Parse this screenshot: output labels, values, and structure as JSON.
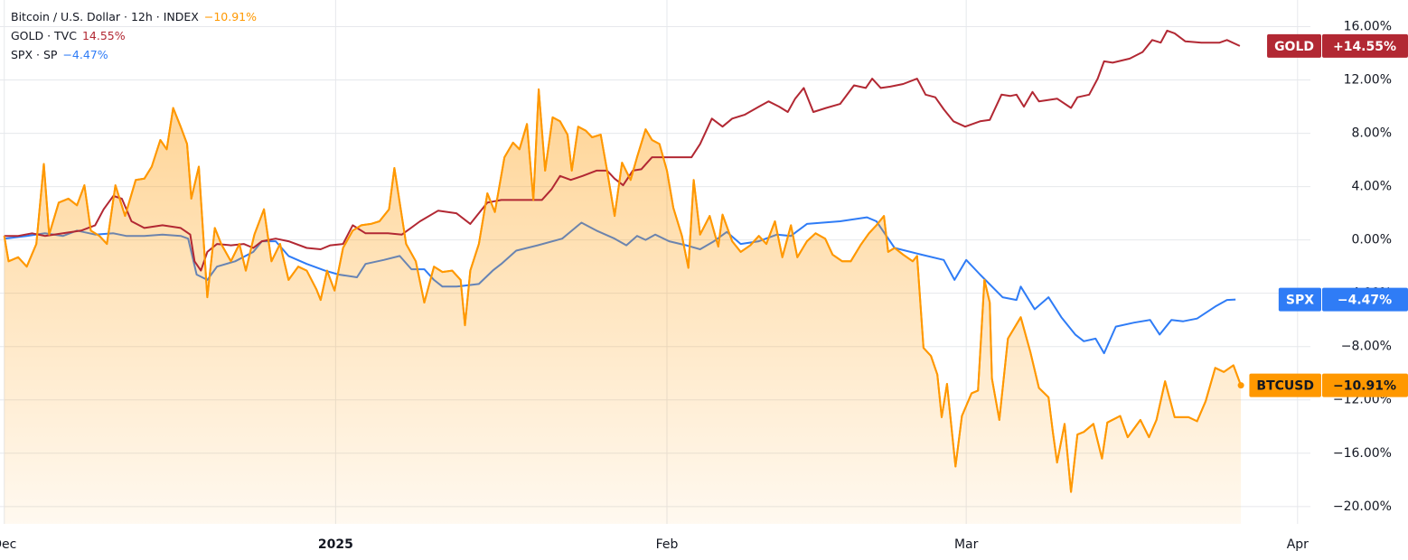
{
  "chart_data": {
    "type": "line",
    "xlim": [
      -0.4,
      122.2
    ],
    "xticks": [
      {
        "value": 0,
        "label": "Dec"
      },
      {
        "value": 31,
        "label": "2025"
      },
      {
        "value": 62,
        "label": "Feb"
      },
      {
        "value": 90,
        "label": "Mar"
      },
      {
        "value": 121,
        "label": "Apr"
      }
    ],
    "ylim": [
      -21.3,
      18.0
    ],
    "yticks": [
      {
        "value": 16,
        "label": "16.00%"
      },
      {
        "value": 12,
        "label": "12.00%"
      },
      {
        "value": 8,
        "label": "8.00%"
      },
      {
        "value": 4,
        "label": "4.00%"
      },
      {
        "value": 0,
        "label": "0.00%"
      },
      {
        "value": -4,
        "label": "−4.00%"
      },
      {
        "value": -8,
        "label": "−8.00%"
      },
      {
        "value": -12,
        "label": "−12.00%"
      },
      {
        "value": -16,
        "label": "−16.00%"
      },
      {
        "value": -20,
        "label": "−20.00%"
      }
    ],
    "grid": true,
    "series": [
      {
        "name": "SPX",
        "legend_label": "SPX · SP",
        "legend_value": "−4.47%",
        "last_label": "−4.47%",
        "color": "#2f7cf6",
        "area": false,
        "x": [
          0.0,
          2.1,
          3.8,
          5.5,
          6.8,
          8.5,
          10.2,
          11.4,
          13.1,
          14.8,
          16.5,
          17.2,
          18.0,
          19.0,
          19.9,
          21.6,
          23.3,
          24.1,
          25.4,
          26.6,
          28.3,
          30.0,
          31.3,
          33.0,
          33.8,
          35.5,
          37.0,
          38.1,
          39.3,
          40.2,
          41.0,
          42.3,
          44.4,
          45.7,
          46.5,
          47.9,
          49.9,
          52.2,
          54.0,
          55.4,
          57.1,
          58.2,
          59.2,
          60.0,
          60.9,
          62.2,
          63.8,
          65.1,
          66.4,
          67.6,
          68.9,
          70.6,
          72.3,
          73.6,
          75.1,
          78.2,
          80.7,
          81.6,
          83.3,
          85.8,
          87.9,
          88.9,
          90.0,
          91.3,
          93.4,
          94.7,
          95.1,
          96.4,
          97.7,
          98.9,
          100.2,
          101.0,
          102.1,
          102.9,
          104.0,
          105.7,
          107.2,
          108.1,
          109.2,
          110.3,
          111.6,
          113.3,
          114.4,
          115.2
        ],
        "values": [
          0.1,
          0.3,
          0.5,
          0.3,
          0.7,
          0.4,
          0.5,
          0.3,
          0.3,
          0.4,
          0.3,
          0.1,
          -2.6,
          -3.0,
          -2.0,
          -1.6,
          -0.9,
          -0.1,
          -0.1,
          -1.2,
          -1.8,
          -2.3,
          -2.6,
          -2.8,
          -1.8,
          -1.5,
          -1.2,
          -2.2,
          -2.2,
          -3.0,
          -3.5,
          -3.5,
          -3.3,
          -2.3,
          -1.8,
          -0.8,
          -0.4,
          0.1,
          1.3,
          0.7,
          0.1,
          -0.4,
          0.3,
          0.0,
          0.4,
          -0.1,
          -0.4,
          -0.7,
          -0.1,
          0.6,
          -0.3,
          -0.1,
          0.4,
          0.3,
          1.2,
          1.4,
          1.7,
          1.4,
          -0.6,
          -1.1,
          -1.5,
          -3.0,
          -1.5,
          -2.6,
          -4.3,
          -4.5,
          -3.5,
          -5.2,
          -4.3,
          -5.8,
          -7.1,
          -7.6,
          -7.4,
          -8.5,
          -6.5,
          -6.2,
          -6.0,
          -7.1,
          -6.0,
          -6.1,
          -5.9,
          -5.0,
          -4.5,
          -4.47
        ]
      },
      {
        "name": "BTCUSD",
        "legend_label": "Bitcoin / U.S. Dollar · 12h · INDEX",
        "legend_value": "−10.91%",
        "last_label": "−10.91%",
        "color": "#ff9800",
        "area": true,
        "x": [
          0.0,
          0.4,
          1.3,
          2.1,
          3.0,
          3.7,
          4.2,
          5.1,
          6.0,
          6.8,
          7.5,
          8.1,
          8.9,
          9.6,
          10.4,
          11.3,
          12.3,
          13.1,
          13.8,
          14.6,
          15.2,
          15.8,
          16.5,
          17.1,
          17.5,
          18.2,
          19.0,
          19.7,
          20.3,
          21.2,
          22.0,
          22.6,
          23.4,
          24.3,
          25.0,
          25.8,
          26.6,
          27.5,
          28.3,
          29.2,
          29.6,
          30.2,
          30.9,
          31.7,
          32.6,
          33.4,
          34.3,
          35.1,
          36.0,
          36.5,
          37.0,
          37.6,
          38.5,
          39.3,
          40.2,
          41.0,
          41.9,
          42.7,
          43.1,
          43.6,
          44.4,
          45.2,
          45.9,
          46.8,
          47.6,
          48.2,
          48.9,
          49.5,
          50.0,
          50.6,
          51.3,
          52.0,
          52.7,
          53.1,
          53.7,
          54.4,
          55.0,
          55.8,
          56.4,
          57.1,
          57.8,
          58.6,
          59.2,
          60.0,
          60.6,
          61.3,
          62.0,
          62.6,
          63.4,
          64.0,
          64.5,
          65.1,
          66.0,
          66.8,
          67.2,
          68.1,
          68.9,
          69.8,
          70.6,
          71.3,
          72.1,
          72.8,
          73.6,
          74.2,
          75.1,
          75.9,
          76.8,
          77.5,
          78.4,
          79.2,
          80.1,
          80.9,
          81.6,
          82.3,
          82.7,
          83.3,
          84.1,
          85.0,
          85.4,
          86.0,
          86.7,
          87.3,
          87.7,
          88.2,
          89.0,
          89.6,
          90.5,
          91.1,
          91.7,
          92.2,
          92.4,
          93.1,
          93.9,
          95.1,
          96.0,
          96.8,
          97.7,
          98.1,
          98.5,
          99.2,
          99.8,
          100.4,
          101.0,
          101.9,
          102.7,
          103.2,
          104.4,
          105.1,
          106.3,
          107.1,
          107.8,
          108.6,
          109.5,
          110.8,
          111.6,
          112.4,
          113.3,
          114.1,
          115.0,
          115.7
        ],
        "values": [
          0.3,
          -1.6,
          -1.3,
          -2.0,
          -0.3,
          5.7,
          0.4,
          2.8,
          3.1,
          2.6,
          4.1,
          0.7,
          0.3,
          -0.3,
          4.1,
          1.8,
          4.5,
          4.6,
          5.5,
          7.5,
          6.8,
          9.9,
          8.5,
          7.2,
          3.1,
          5.5,
          -4.3,
          0.9,
          -0.3,
          -1.6,
          -0.3,
          -2.3,
          0.4,
          2.3,
          -1.6,
          -0.3,
          -3.0,
          -2.0,
          -2.3,
          -3.7,
          -4.5,
          -2.3,
          -3.8,
          -0.6,
          0.7,
          1.1,
          1.2,
          1.4,
          2.3,
          5.4,
          2.8,
          -0.3,
          -1.6,
          -4.7,
          -2.0,
          -2.4,
          -2.3,
          -3.0,
          -6.4,
          -2.3,
          -0.3,
          3.5,
          2.1,
          6.2,
          7.3,
          6.8,
          8.7,
          3.0,
          11.3,
          5.2,
          9.2,
          8.9,
          7.9,
          5.2,
          8.5,
          8.2,
          7.7,
          7.9,
          5.2,
          1.8,
          5.8,
          4.5,
          6.2,
          8.3,
          7.5,
          7.2,
          5.2,
          2.4,
          0.3,
          -2.1,
          4.5,
          0.4,
          1.8,
          -0.5,
          1.9,
          -0.1,
          -0.9,
          -0.4,
          0.3,
          -0.3,
          1.4,
          -1.3,
          1.1,
          -1.3,
          -0.1,
          0.5,
          0.1,
          -1.1,
          -1.6,
          -1.6,
          -0.4,
          0.5,
          1.1,
          1.8,
          -0.9,
          -0.6,
          -1.1,
          -1.6,
          -1.2,
          -8.1,
          -8.7,
          -10.1,
          -13.3,
          -10.8,
          -17.0,
          -13.2,
          -11.5,
          -11.3,
          -3.0,
          -4.7,
          -10.4,
          -13.5,
          -7.4,
          -5.8,
          -8.4,
          -11.1,
          -11.8,
          -14.4,
          -16.7,
          -13.8,
          -18.9,
          -14.6,
          -14.4,
          -13.8,
          -16.4,
          -13.7,
          -13.2,
          -14.8,
          -13.5,
          -14.8,
          -13.5,
          -10.6,
          -13.3,
          -13.3,
          -13.6,
          -12.1,
          -9.6,
          -9.9,
          -9.4,
          -10.91
        ]
      },
      {
        "name": "GOLD",
        "legend_label": "GOLD · TVC",
        "legend_value": "14.55%",
        "last_label": "+14.55%",
        "color": "#b22833",
        "area": false,
        "x": [
          0.0,
          1.3,
          2.6,
          3.8,
          5.5,
          7.2,
          8.5,
          9.3,
          10.2,
          11.0,
          11.9,
          13.1,
          14.8,
          16.5,
          17.4,
          17.8,
          18.4,
          19.0,
          19.9,
          21.2,
          22.4,
          23.3,
          24.1,
          25.4,
          26.6,
          28.3,
          29.6,
          30.5,
          31.7,
          32.6,
          33.8,
          35.9,
          37.2,
          38.9,
          40.6,
          42.3,
          43.6,
          45.2,
          46.5,
          48.6,
          50.3,
          51.2,
          52.0,
          53.0,
          54.1,
          55.4,
          56.4,
          57.1,
          57.9,
          58.8,
          59.6,
          60.6,
          61.7,
          64.3,
          65.1,
          66.2,
          67.2,
          68.1,
          69.3,
          70.6,
          71.5,
          72.5,
          73.3,
          74.0,
          74.8,
          75.7,
          76.9,
          78.2,
          79.5,
          80.6,
          81.2,
          82.0,
          82.9,
          84.1,
          85.4,
          86.2,
          87.1,
          87.9,
          88.8,
          89.9,
          91.3,
          92.2,
          93.3,
          94.1,
          94.7,
          95.4,
          96.2,
          96.8,
          98.5,
          99.8,
          100.4,
          101.5,
          102.3,
          102.9,
          103.7,
          105.3,
          106.5,
          107.4,
          108.2,
          108.8,
          109.5,
          110.5,
          112.0,
          113.7,
          114.4,
          115.6
        ],
        "values": [
          0.3,
          0.3,
          0.5,
          0.3,
          0.5,
          0.7,
          1.1,
          2.3,
          3.3,
          3.1,
          1.4,
          0.9,
          1.1,
          0.9,
          0.4,
          -1.6,
          -2.3,
          -0.9,
          -0.3,
          -0.4,
          -0.3,
          -0.6,
          -0.1,
          0.1,
          -0.1,
          -0.6,
          -0.7,
          -0.4,
          -0.3,
          1.1,
          0.5,
          0.5,
          0.4,
          1.4,
          2.2,
          2.0,
          1.2,
          2.8,
          3.0,
          3.0,
          3.0,
          3.8,
          4.8,
          4.5,
          4.8,
          5.2,
          5.2,
          4.6,
          4.1,
          5.2,
          5.3,
          6.2,
          6.2,
          6.2,
          7.2,
          9.1,
          8.5,
          9.1,
          9.4,
          10.0,
          10.4,
          10.0,
          9.6,
          10.6,
          11.4,
          9.6,
          9.9,
          10.2,
          11.6,
          11.4,
          12.1,
          11.4,
          11.5,
          11.7,
          12.1,
          10.9,
          10.7,
          9.8,
          8.9,
          8.5,
          8.9,
          9.0,
          10.9,
          10.8,
          10.9,
          10.0,
          11.1,
          10.4,
          10.6,
          9.9,
          10.7,
          10.9,
          12.1,
          13.4,
          13.3,
          13.6,
          14.1,
          15.0,
          14.8,
          15.7,
          15.5,
          14.9,
          14.8,
          14.8,
          15.0,
          14.55
        ]
      }
    ]
  }
}
